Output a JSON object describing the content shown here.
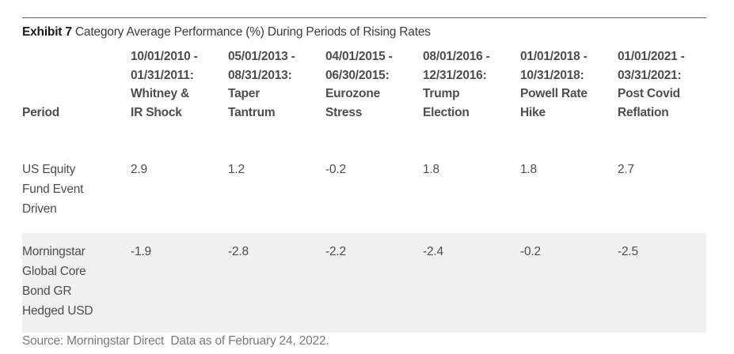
{
  "exhibit": {
    "label": "Exhibit 7",
    "title": "Category Average Performance (%) During Periods of Rising Rates"
  },
  "table": {
    "period_header": "Period",
    "column_headers": [
      "10/01/2010 -\n01/31/2011:\nWhitney &\nIR Shock",
      "05/01/2013 -\n08/31/2013:\nTaper\nTantrum",
      "04/01/2015 -\n06/30/2015:\nEurozone\nStress",
      "08/01/2016 -\n12/31/2016:\nTrump\nElection",
      "01/01/2018 -\n10/31/2018:\nPowell Rate\nHike",
      "01/01/2021 -\n03/31/2021:\nPost Covid\nReflation"
    ],
    "rows": [
      {
        "label": "US Equity\nFund Event\nDriven",
        "values": [
          "2.9",
          "1.2",
          "-0.2",
          "1.8",
          "1.8",
          "2.7"
        ]
      },
      {
        "label": "Morningstar\nGlobal Core\nBond GR\nHedged USD",
        "values": [
          "-1.9",
          "-2.8",
          "-2.2",
          "-2.4",
          "-0.2",
          "-2.5"
        ]
      }
    ]
  },
  "source": "Source: Morningstar Direct  Data as of February 24, 2022.",
  "colors": {
    "row_highlight": "#f0f0f0",
    "text": "#4d4d4d",
    "muted_text": "#7a7a7a",
    "rule": "#626262"
  }
}
